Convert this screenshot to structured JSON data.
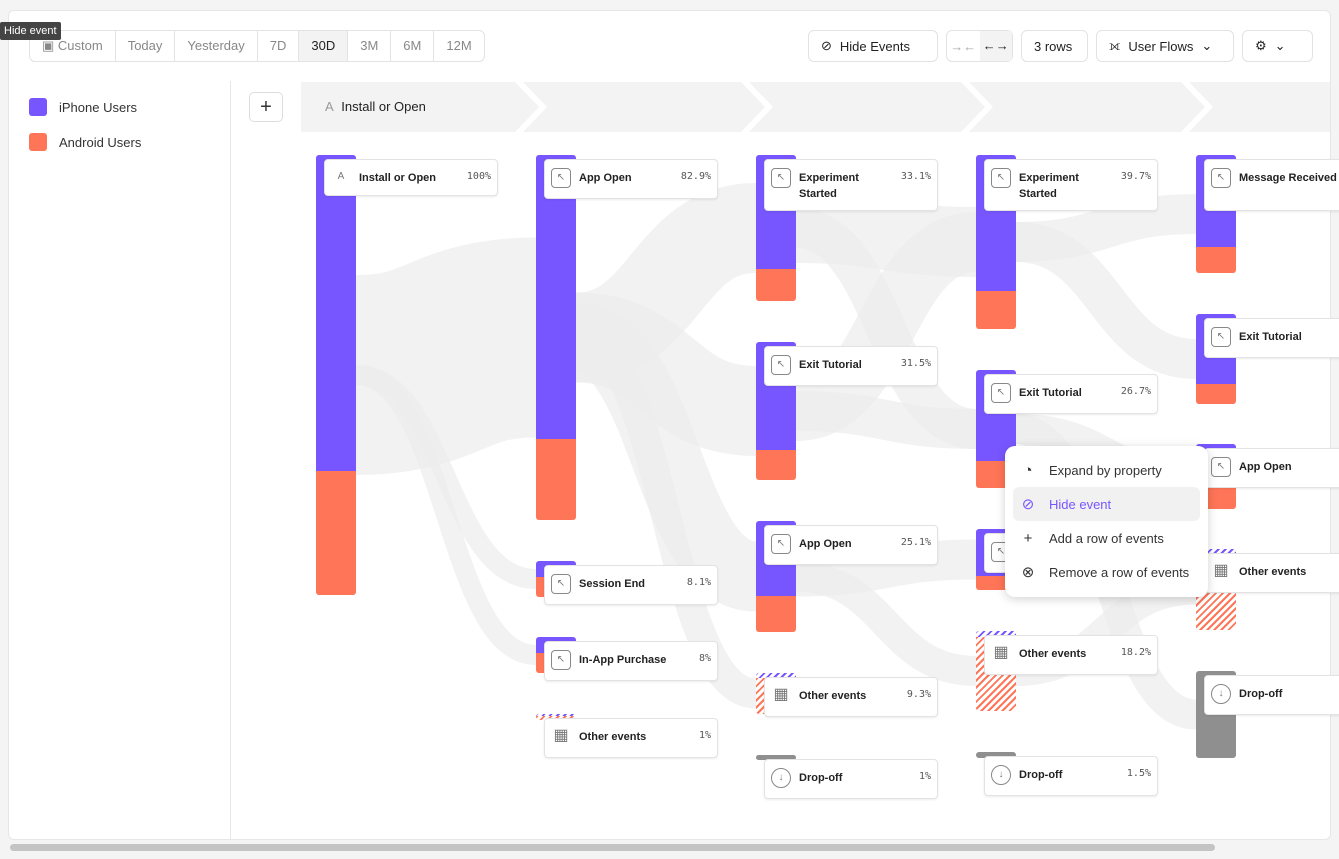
{
  "tooltip": "Hide event",
  "date_range": {
    "custom": "Custom",
    "options": [
      "Today",
      "Yesterday",
      "7D",
      "30D",
      "3M",
      "6M",
      "12M"
    ],
    "selected": "30D"
  },
  "toolbar": {
    "hide_events": "Hide Events",
    "rows": "3 rows",
    "chart_type": "User Flows",
    "compress_icon": "arrows-in-icon",
    "expand_icon": "arrows-out-icon",
    "settings_icon": "gear-icon"
  },
  "legend": [
    {
      "label": "iPhone Users",
      "color": "#7856ff"
    },
    {
      "label": "Android Users",
      "color": "#ff7557"
    }
  ],
  "step_header": {
    "letter": "A",
    "label": "Install or Open"
  },
  "columns": [
    [
      {
        "label": "Install or Open",
        "pct": "100%",
        "icon": "A"
      }
    ],
    [
      {
        "label": "App Open",
        "pct": "82.9%"
      },
      {
        "label": "Session End",
        "pct": "8.1%"
      },
      {
        "label": "In-App Purchase",
        "pct": "8%"
      },
      {
        "label": "Other events",
        "pct": "1%",
        "type": "other"
      }
    ],
    [
      {
        "label": "Experiment Started",
        "pct": "33.1%"
      },
      {
        "label": "Exit Tutorial",
        "pct": "31.5%"
      },
      {
        "label": "App Open",
        "pct": "25.1%"
      },
      {
        "label": "Other events",
        "pct": "9.3%",
        "type": "other"
      },
      {
        "label": "Drop-off",
        "pct": "1%",
        "type": "drop"
      }
    ],
    [
      {
        "label": "Experiment Started",
        "pct": "39.7%"
      },
      {
        "label": "Exit Tutorial",
        "pct": "26.7%"
      },
      {
        "label": "",
        "pct": ""
      },
      {
        "label": "Other events",
        "pct": "18.2%",
        "type": "other"
      },
      {
        "label": "Drop-off",
        "pct": "1.5%",
        "type": "drop"
      }
    ],
    [
      {
        "label": "Message Received",
        "pct": ""
      },
      {
        "label": "Exit Tutorial",
        "pct": ""
      },
      {
        "label": "App Open",
        "pct": ""
      },
      {
        "label": "Other events",
        "pct": "",
        "type": "other"
      },
      {
        "label": "Drop-off",
        "pct": "",
        "type": "drop"
      }
    ]
  ],
  "context_menu": [
    {
      "label": "Expand by property",
      "icon": "expand-property-icon",
      "active": false
    },
    {
      "label": "Hide event",
      "icon": "eye-off-icon",
      "active": true
    },
    {
      "label": "Add a row of events",
      "icon": "plus-icon",
      "active": false
    },
    {
      "label": "Remove a row of events",
      "icon": "x-circle-icon",
      "active": false
    }
  ]
}
